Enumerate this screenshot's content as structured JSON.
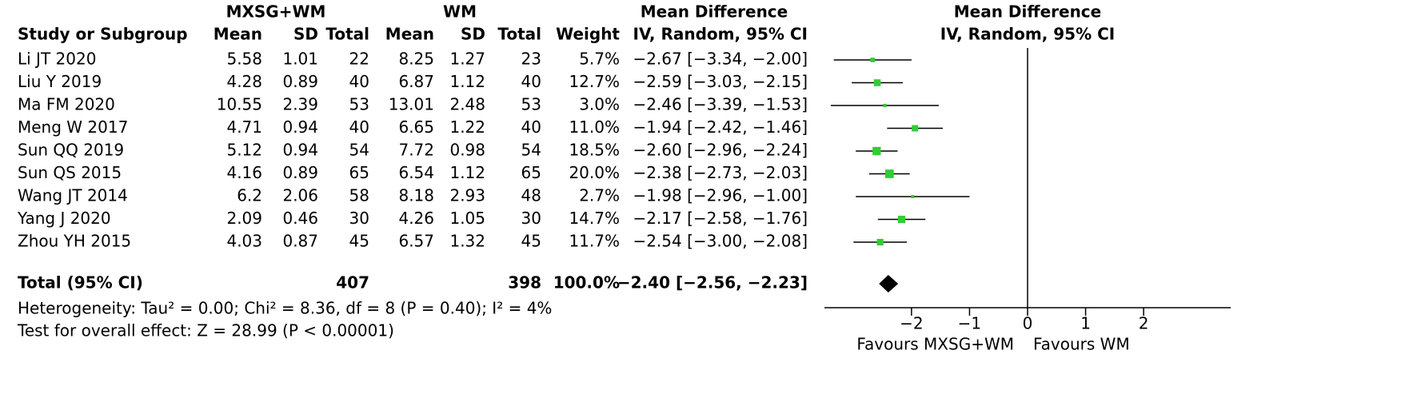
{
  "chart_data": {
    "type": "forest",
    "group_row": [
      "MXSG+WM",
      "WM",
      "Mean Difference",
      "Mean Difference"
    ],
    "header_row": [
      "Study or Subgroup",
      "Mean",
      "SD",
      "Total",
      "Mean",
      "SD",
      "Total",
      "Weight",
      "IV, Random, 95% CI",
      "IV, Random, 95% CI"
    ],
    "studies": [
      {
        "name": "Li JT 2020",
        "mean1": 5.58,
        "sd1": 1.01,
        "total1": 22,
        "mean2": 8.25,
        "sd2": 1.27,
        "total2": 23,
        "weight": {
          "value": 5.7,
          "label": "5.7%"
        },
        "md": -2.67,
        "ci_low": -3.34,
        "ci_high": -2.0,
        "ci_label": "−2.67 [−3.34, −2.00]"
      },
      {
        "name": "Liu Y 2019",
        "mean1": 4.28,
        "sd1": 0.89,
        "total1": 40,
        "mean2": 6.87,
        "sd2": 1.12,
        "total2": 40,
        "weight": {
          "value": 12.7,
          "label": "12.7%"
        },
        "md": -2.59,
        "ci_low": -3.03,
        "ci_high": -2.15,
        "ci_label": "−2.59 [−3.03, −2.15]"
      },
      {
        "name": "Ma FM 2020",
        "mean1": 10.55,
        "sd1": 2.39,
        "total1": 53,
        "mean2": 13.01,
        "sd2": 2.48,
        "total2": 53,
        "weight": {
          "value": 3.0,
          "label": "3.0%"
        },
        "md": -2.46,
        "ci_low": -3.39,
        "ci_high": -1.53,
        "ci_label": "−2.46 [−3.39, −1.53]"
      },
      {
        "name": "Meng W 2017",
        "mean1": 4.71,
        "sd1": 0.94,
        "total1": 40,
        "mean2": 6.65,
        "sd2": 1.22,
        "total2": 40,
        "weight": {
          "value": 11.0,
          "label": "11.0%"
        },
        "md": -1.94,
        "ci_low": -2.42,
        "ci_high": -1.46,
        "ci_label": "−1.94 [−2.42, −1.46]"
      },
      {
        "name": "Sun QQ 2019",
        "mean1": 5.12,
        "sd1": 0.94,
        "total1": 54,
        "mean2": 7.72,
        "sd2": 0.98,
        "total2": 54,
        "weight": {
          "value": 18.5,
          "label": "18.5%"
        },
        "md": -2.6,
        "ci_low": -2.96,
        "ci_high": -2.24,
        "ci_label": "−2.60 [−2.96, −2.24]"
      },
      {
        "name": "Sun QS 2015",
        "mean1": 4.16,
        "sd1": 0.89,
        "total1": 65,
        "mean2": 6.54,
        "sd2": 1.12,
        "total2": 65,
        "weight": {
          "value": 20.0,
          "label": "20.0%"
        },
        "md": -2.38,
        "ci_low": -2.73,
        "ci_high": -2.03,
        "ci_label": "−2.38 [−2.73, −2.03]"
      },
      {
        "name": "Wang JT 2014",
        "mean1": 6.2,
        "sd1": 2.06,
        "total1": 58,
        "mean2": 8.18,
        "sd2": 2.93,
        "total2": 48,
        "weight": {
          "value": 2.7,
          "label": "2.7%"
        },
        "md": -1.98,
        "ci_low": -2.96,
        "ci_high": -1.0,
        "ci_label": "−1.98 [−2.96, −1.00]"
      },
      {
        "name": "Yang J 2020",
        "mean1": 2.09,
        "sd1": 0.46,
        "total1": 30,
        "mean2": 4.26,
        "sd2": 1.05,
        "total2": 30,
        "weight": {
          "value": 14.7,
          "label": "14.7%"
        },
        "md": -2.17,
        "ci_low": -2.58,
        "ci_high": -1.76,
        "ci_label": "−2.17 [−2.58, −1.76]"
      },
      {
        "name": "Zhou YH 2015",
        "mean1": 4.03,
        "sd1": 0.87,
        "total1": 45,
        "mean2": 6.57,
        "sd2": 1.32,
        "total2": 45,
        "weight": {
          "value": 11.7,
          "label": "11.7%"
        },
        "md": -2.54,
        "ci_low": -3.0,
        "ci_high": -2.08,
        "ci_label": "−2.54 [−3.00, −2.08]"
      }
    ],
    "total": {
      "name": "Total (95% CI)",
      "total1": 407,
      "total2": 398,
      "weight": {
        "value": 100.0,
        "label": "100.0%"
      },
      "md": -2.4,
      "ci_low": -2.56,
      "ci_high": -2.23,
      "ci_label": "−2.40 [−2.56, −2.23]"
    },
    "heterogeneity": "Heterogeneity: Tau² = 0.00; Chi² = 8.36, df = 8 (P = 0.40); I² = 4%",
    "overall_effect": "Test for overall effect: Z = 28.99 (P < 0.00001)",
    "square_color": "#33cc33",
    "diamond_color": "#000000",
    "xlim": [
      -3.5,
      3.5
    ],
    "xticks": [
      {
        "value": -2,
        "label": "−2"
      },
      {
        "value": -1,
        "label": "−1"
      },
      0,
      1,
      2
    ],
    "favours_left": "Favours MXSG+WM",
    "favours_right": "Favours WM"
  }
}
